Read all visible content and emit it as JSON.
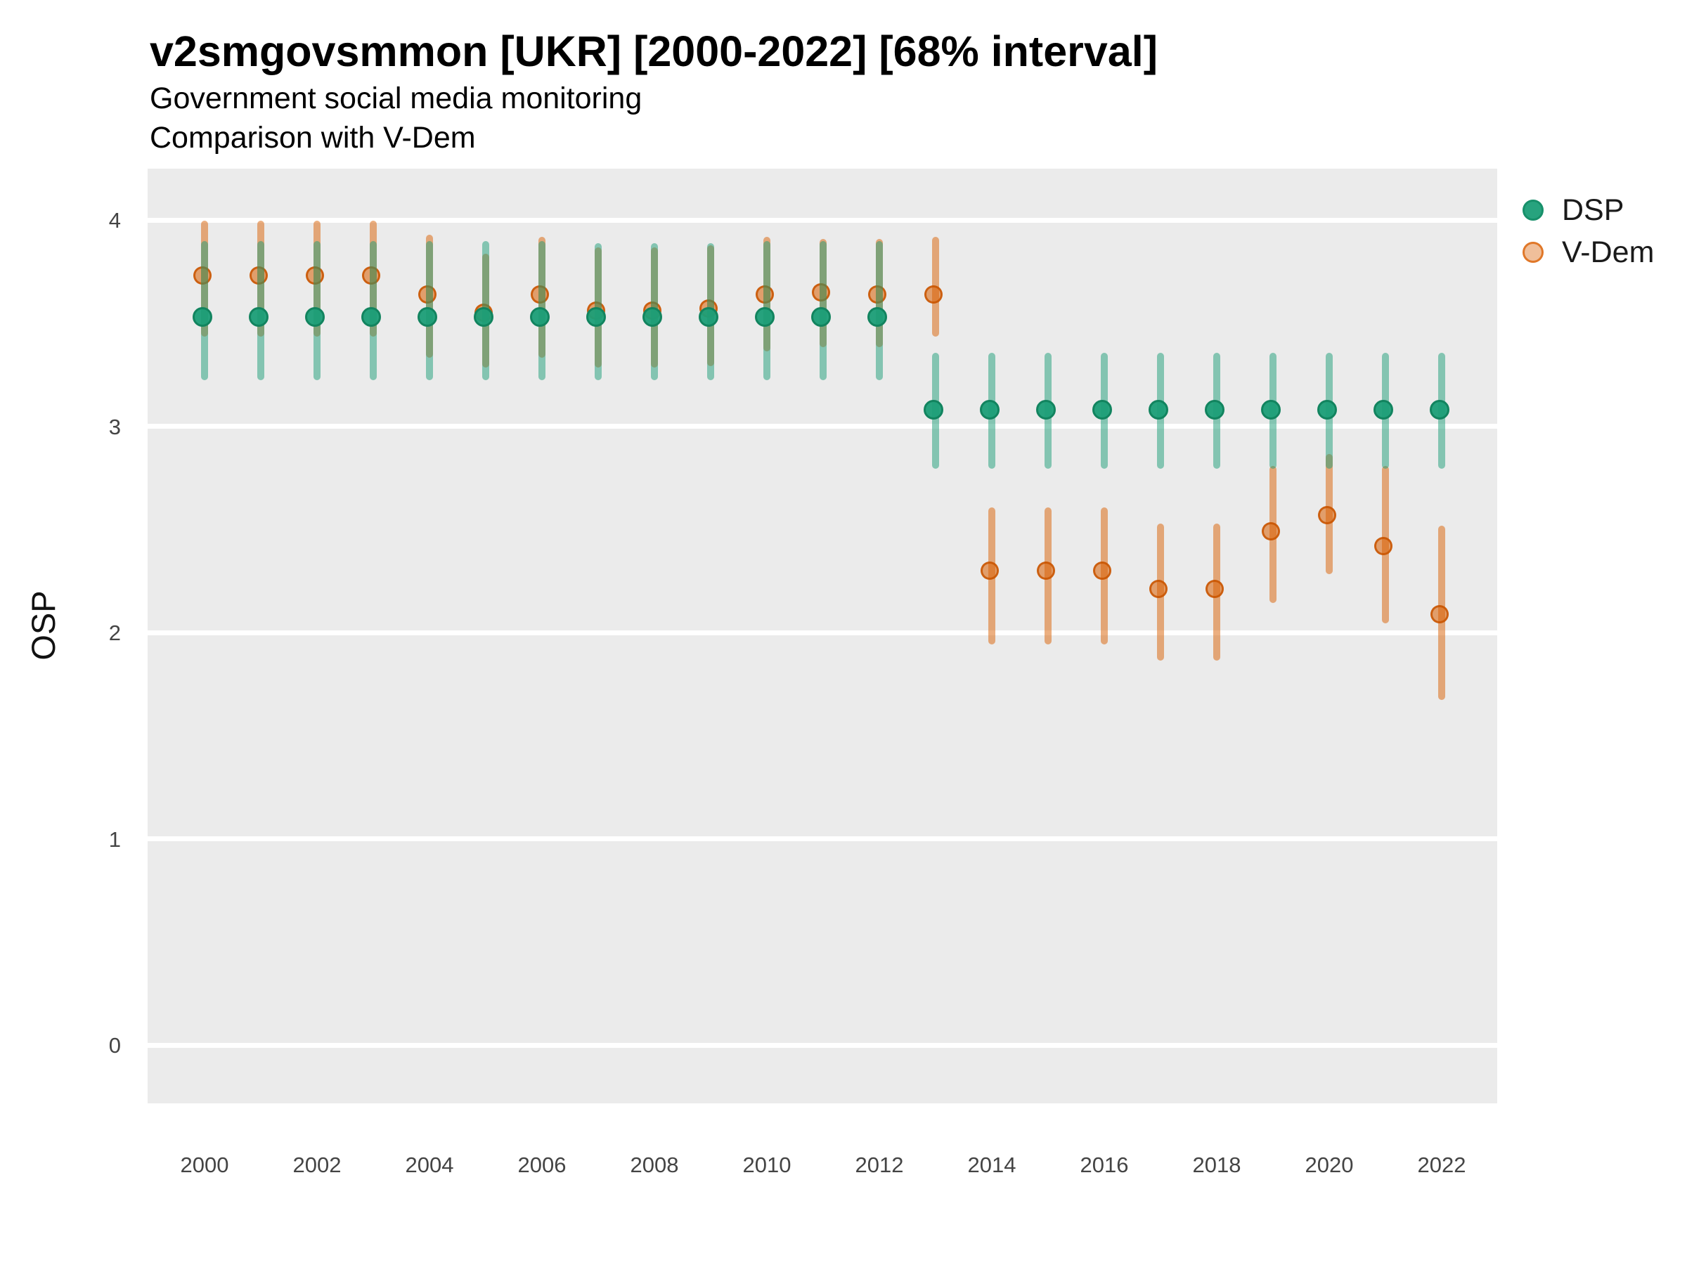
{
  "title": "v2smgovsmmon [UKR] [2000-2022] [68% interval]",
  "subtitle_line1": "Government social media monitoring",
  "subtitle_line2": "Comparison with V-Dem",
  "ylabel": "OSP",
  "legend": [
    {
      "label": "DSP",
      "fill": "rgba(27,158,119,0.95)",
      "border": "#17906a"
    },
    {
      "label": "V-Dem",
      "fill": "rgba(217,95,2,0.40)",
      "border": "rgba(217,95,2,0.75)"
    }
  ],
  "colors": {
    "panel_background": "#ebebeb",
    "gridline": "#ffffff",
    "dsp_point_fill": "rgba(27,158,119,0.95)",
    "dsp_point_border": "#12845f",
    "dsp_bar": "rgba(27,158,119,0.5)",
    "vdem_point_fill": "rgba(217,95,2,0.55)",
    "vdem_point_border": "rgba(200,85,0,0.85)",
    "vdem_bar": "rgba(217,95,2,0.5)"
  },
  "chart_data": {
    "type": "scatter",
    "subtype": "point-estimates-with-68pct-intervals",
    "title": "v2smgovsmmon [UKR] [2000-2022] [68% interval]",
    "xlabel": "",
    "ylabel": "OSP",
    "x": [
      2000,
      2001,
      2002,
      2003,
      2004,
      2005,
      2006,
      2007,
      2008,
      2009,
      2010,
      2011,
      2012,
      2013,
      2014,
      2015,
      2016,
      2017,
      2018,
      2019,
      2020,
      2021,
      2022
    ],
    "x_tick_years": [
      2000,
      2002,
      2004,
      2006,
      2008,
      2010,
      2012,
      2014,
      2016,
      2018,
      2020,
      2022
    ],
    "y_ticks": [
      0,
      1,
      2,
      3,
      4
    ],
    "ylim": [
      -0.27,
      4.25
    ],
    "xlim": [
      1999,
      2023
    ],
    "grid": "horizontal-major-only",
    "legend_position": "right-top",
    "series": [
      {
        "name": "DSP",
        "est": [
          3.52,
          3.52,
          3.52,
          3.52,
          3.52,
          3.52,
          3.52,
          3.52,
          3.52,
          3.52,
          3.52,
          3.52,
          3.52,
          3.07,
          3.07,
          3.07,
          3.07,
          3.07,
          3.07,
          3.07,
          3.07,
          3.07,
          3.07
        ],
        "lo": [
          3.24,
          3.24,
          3.24,
          3.24,
          3.24,
          3.24,
          3.24,
          3.24,
          3.24,
          3.24,
          3.24,
          3.24,
          3.24,
          2.81,
          2.81,
          2.81,
          2.81,
          2.81,
          2.81,
          2.81,
          2.81,
          2.81,
          2.81
        ],
        "hi": [
          3.88,
          3.88,
          3.88,
          3.88,
          3.88,
          3.88,
          3.88,
          3.87,
          3.87,
          3.87,
          3.88,
          3.88,
          3.88,
          3.34,
          3.34,
          3.34,
          3.34,
          3.34,
          3.34,
          3.34,
          3.34,
          3.34,
          3.34
        ]
      },
      {
        "name": "V-Dem",
        "est": [
          3.72,
          3.72,
          3.72,
          3.72,
          3.63,
          3.54,
          3.63,
          3.55,
          3.55,
          3.56,
          3.63,
          3.64,
          3.63,
          3.63,
          2.29,
          2.29,
          2.29,
          2.2,
          2.2,
          2.48,
          2.56,
          2.41,
          2.08
        ],
        "lo": [
          3.45,
          3.45,
          3.45,
          3.45,
          3.35,
          3.3,
          3.35,
          3.3,
          3.3,
          3.31,
          3.38,
          3.4,
          3.4,
          3.45,
          1.96,
          1.96,
          1.96,
          1.88,
          1.88,
          2.16,
          2.3,
          2.06,
          1.69
        ],
        "hi": [
          3.98,
          3.98,
          3.98,
          3.98,
          3.91,
          3.82,
          3.9,
          3.85,
          3.85,
          3.86,
          3.9,
          3.89,
          3.89,
          3.9,
          2.59,
          2.59,
          2.59,
          2.51,
          2.51,
          2.79,
          2.85,
          2.79,
          2.5
        ]
      }
    ]
  }
}
